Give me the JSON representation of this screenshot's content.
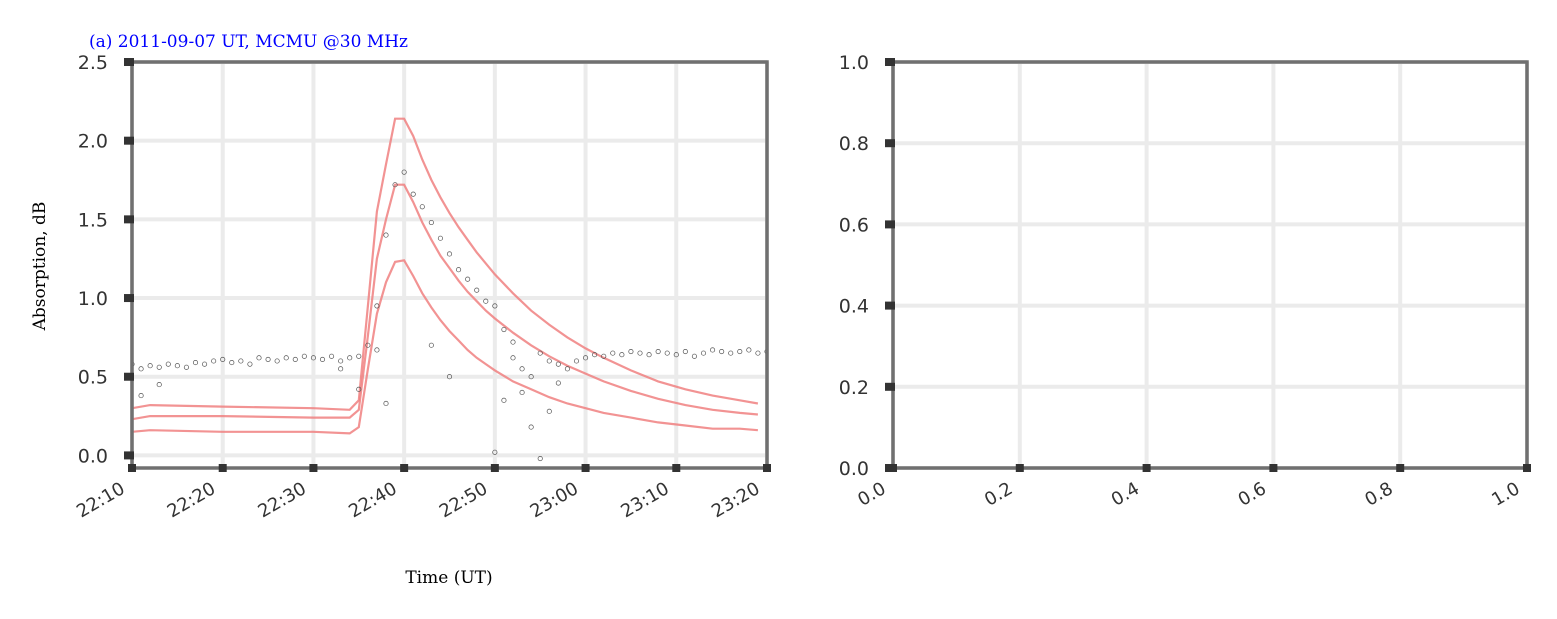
{
  "chart_data": [
    {
      "type": "line",
      "title": "(a) 2011-09-07 UT, MCMU @30 MHz",
      "title_color": "#0000ff",
      "xlabel": "Time (UT)",
      "ylabel": "Absorption, dB",
      "x_ticks": [
        "22:10",
        "22:20",
        "22:30",
        "22:40",
        "22:50",
        "23:00",
        "23:10",
        "23:20"
      ],
      "xlim": [
        "22:10",
        "23:20"
      ],
      "y_ticks": [
        "0.0",
        "0.5",
        "1.0",
        "1.5",
        "2.0",
        "2.5"
      ],
      "ylim": [
        -0.08,
        2.5
      ],
      "grid": true,
      "model_color": "#f08080",
      "obs_color": "#555555",
      "series": [
        {
          "style": "line",
          "x": [
            "22:10",
            "22:12",
            "22:20",
            "22:30",
            "22:34",
            "22:35",
            "22:36",
            "22:37",
            "22:38",
            "22:39",
            "22:40",
            "22:41",
            "22:42",
            "22:43",
            "22:44",
            "22:45",
            "22:46",
            "22:47",
            "22:48",
            "22:49",
            "22:50",
            "22:52",
            "22:54",
            "22:56",
            "22:58",
            "23:00",
            "23:02",
            "23:05",
            "23:08",
            "23:11",
            "23:14",
            "23:17",
            "23:19"
          ],
          "values": [
            0.3,
            0.32,
            0.31,
            0.3,
            0.29,
            0.35,
            0.95,
            1.55,
            1.85,
            2.14,
            2.14,
            2.03,
            1.88,
            1.75,
            1.64,
            1.54,
            1.45,
            1.37,
            1.29,
            1.22,
            1.15,
            1.03,
            0.92,
            0.83,
            0.75,
            0.68,
            0.62,
            0.54,
            0.47,
            0.42,
            0.38,
            0.35,
            0.33
          ]
        },
        {
          "style": "line",
          "x": [
            "22:10",
            "22:12",
            "22:20",
            "22:30",
            "22:34",
            "22:35",
            "22:36",
            "22:37",
            "22:38",
            "22:39",
            "22:40",
            "22:41",
            "22:42",
            "22:43",
            "22:44",
            "22:45",
            "22:46",
            "22:47",
            "22:48",
            "22:49",
            "22:50",
            "22:52",
            "22:54",
            "22:56",
            "22:58",
            "23:00",
            "23:02",
            "23:05",
            "23:08",
            "23:11",
            "23:14",
            "23:17",
            "23:19"
          ],
          "values": [
            0.23,
            0.25,
            0.25,
            0.24,
            0.24,
            0.29,
            0.76,
            1.25,
            1.5,
            1.72,
            1.72,
            1.61,
            1.48,
            1.37,
            1.27,
            1.19,
            1.11,
            1.04,
            0.98,
            0.92,
            0.87,
            0.78,
            0.7,
            0.63,
            0.57,
            0.52,
            0.47,
            0.41,
            0.36,
            0.32,
            0.29,
            0.27,
            0.26
          ]
        },
        {
          "style": "line",
          "x": [
            "22:10",
            "22:12",
            "22:20",
            "22:30",
            "22:34",
            "22:35",
            "22:36",
            "22:37",
            "22:38",
            "22:39",
            "22:40",
            "22:41",
            "22:42",
            "22:43",
            "22:44",
            "22:45",
            "22:46",
            "22:47",
            "22:48",
            "22:49",
            "22:50",
            "22:52",
            "22:54",
            "22:56",
            "22:58",
            "23:00",
            "23:02",
            "23:05",
            "23:08",
            "23:11",
            "23:14",
            "23:17",
            "23:19"
          ],
          "values": [
            0.15,
            0.16,
            0.15,
            0.15,
            0.14,
            0.18,
            0.55,
            0.9,
            1.1,
            1.23,
            1.24,
            1.14,
            1.03,
            0.94,
            0.86,
            0.79,
            0.73,
            0.67,
            0.62,
            0.58,
            0.54,
            0.47,
            0.42,
            0.37,
            0.33,
            0.3,
            0.27,
            0.24,
            0.21,
            0.19,
            0.17,
            0.17,
            0.16
          ]
        },
        {
          "style": "dots",
          "x": [
            "22:10",
            "22:11",
            "22:12",
            "22:13",
            "22:14",
            "22:15",
            "22:16",
            "22:17",
            "22:18",
            "22:19",
            "22:20",
            "22:21",
            "22:22",
            "22:23",
            "22:24",
            "22:25",
            "22:26",
            "22:27",
            "22:28",
            "22:29",
            "22:30",
            "22:31",
            "22:32",
            "22:33",
            "22:34",
            "22:35",
            "22:36",
            "22:37",
            "22:38",
            "22:39",
            "22:40",
            "22:41",
            "22:42",
            "22:43",
            "22:44",
            "22:45",
            "22:46",
            "22:47",
            "22:48",
            "22:49",
            "22:50",
            "22:51",
            "22:52",
            "22:53",
            "22:54",
            "22:55",
            "22:56",
            "22:57",
            "22:58",
            "22:59",
            "23:00",
            "23:01",
            "23:02",
            "23:03",
            "23:04",
            "23:05",
            "23:06",
            "23:07",
            "23:08",
            "23:09",
            "23:10",
            "23:11",
            "23:12",
            "23:13",
            "23:14",
            "23:15",
            "23:16",
            "23:17",
            "23:18",
            "23:19",
            "23:20"
          ],
          "values": [
            0.58,
            0.55,
            0.57,
            0.56,
            0.58,
            0.57,
            0.56,
            0.59,
            0.58,
            0.6,
            0.61,
            0.59,
            0.6,
            0.58,
            0.62,
            0.61,
            0.6,
            0.62,
            0.61,
            0.63,
            0.62,
            0.61,
            0.63,
            0.6,
            0.62,
            0.63,
            0.7,
            0.95,
            1.4,
            1.72,
            1.8,
            1.66,
            1.58,
            1.48,
            1.38,
            1.28,
            1.18,
            1.12,
            1.05,
            0.98,
            0.95,
            0.8,
            0.72,
            0.55,
            0.5,
            0.65,
            0.6,
            0.58,
            0.55,
            0.6,
            0.62,
            0.64,
            0.63,
            0.65,
            0.64,
            0.66,
            0.65,
            0.64,
            0.66,
            0.65,
            0.64,
            0.66,
            0.63,
            0.65,
            0.67,
            0.66,
            0.65,
            0.66,
            0.67,
            0.65,
            0.66
          ]
        },
        {
          "style": "dots",
          "x": [
            "22:11",
            "22:13",
            "22:33",
            "22:35",
            "22:37",
            "22:38",
            "22:43",
            "22:45",
            "22:50",
            "22:51",
            "22:52",
            "22:53",
            "22:54",
            "22:55",
            "22:56",
            "22:57"
          ],
          "values": [
            0.38,
            0.45,
            0.55,
            0.42,
            0.67,
            0.33,
            0.7,
            0.5,
            0.02,
            0.35,
            0.62,
            0.4,
            0.18,
            -0.02,
            0.28,
            0.46
          ]
        }
      ]
    },
    {
      "type": "line",
      "title": "",
      "xlabel": "",
      "ylabel": "",
      "x_ticks": [
        "0.0",
        "0.2",
        "0.4",
        "0.6",
        "0.8",
        "1.0"
      ],
      "xlim": [
        0,
        1
      ],
      "y_ticks": [
        "0.0",
        "0.2",
        "0.4",
        "0.6",
        "0.8",
        "1.0"
      ],
      "ylim": [
        0,
        1
      ],
      "grid": true,
      "series": []
    }
  ]
}
